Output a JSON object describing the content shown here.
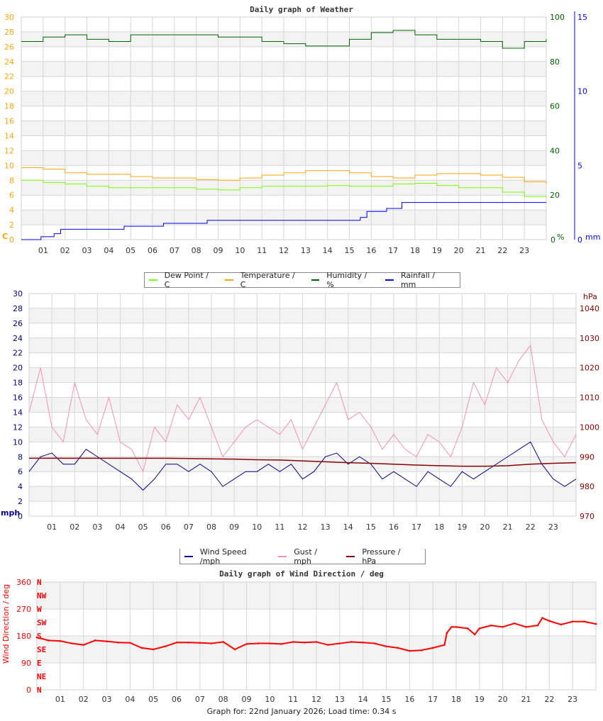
{
  "chart_data": [
    {
      "type": "line",
      "title": "Daily graph of Weather",
      "x_tick_labels": [
        "01",
        "02",
        "03",
        "04",
        "05",
        "06",
        "07",
        "08",
        "09",
        "10",
        "11",
        "12",
        "13",
        "14",
        "15",
        "16",
        "17",
        "18",
        "19",
        "20",
        "21",
        "22",
        "23"
      ],
      "xlim": [
        0,
        24
      ],
      "grid": true,
      "legend_placement": "bottom",
      "axes": {
        "left": {
          "unit": "C",
          "range": [
            0,
            30
          ],
          "ticks": [
            0,
            2,
            4,
            6,
            8,
            10,
            12,
            14,
            16,
            18,
            20,
            22,
            24,
            26,
            28,
            30
          ],
          "color": "#ffa500"
        },
        "humidity": {
          "unit": "%",
          "range": [
            0,
            100
          ],
          "ticks": [
            0,
            20,
            40,
            60,
            80,
            100
          ],
          "color": "#006400"
        },
        "rain": {
          "unit": "mm",
          "range": [
            0,
            15
          ],
          "ticks": [
            0,
            5,
            10,
            15
          ],
          "color": "#0000ff"
        }
      },
      "series": [
        {
          "name": "Dew Point / C",
          "axis": "left",
          "color": "#7cfc00",
          "x": [
            0,
            1,
            2,
            3,
            4,
            5,
            6,
            7,
            8,
            9,
            10,
            11,
            12,
            13,
            14,
            15,
            16,
            17,
            18,
            19,
            20,
            21,
            22,
            23,
            24
          ],
          "y": [
            8.0,
            7.7,
            7.5,
            7.2,
            7.0,
            7.0,
            7.0,
            7.0,
            6.8,
            6.7,
            7.0,
            7.2,
            7.2,
            7.2,
            7.3,
            7.2,
            7.2,
            7.5,
            7.6,
            7.3,
            7.0,
            7.0,
            6.4,
            5.8,
            5.7
          ]
        },
        {
          "name": "Temperature / C",
          "axis": "left",
          "color": "#ffa500",
          "x": [
            0,
            1,
            2,
            3,
            4,
            5,
            6,
            7,
            8,
            9,
            10,
            11,
            12,
            13,
            14,
            15,
            16,
            17,
            18,
            19,
            20,
            21,
            22,
            23,
            24
          ],
          "y": [
            9.7,
            9.5,
            9.0,
            8.8,
            8.8,
            8.5,
            8.3,
            8.3,
            8.1,
            8.0,
            8.3,
            8.7,
            9.0,
            9.3,
            9.3,
            9.0,
            8.5,
            8.3,
            8.7,
            8.9,
            8.9,
            8.7,
            8.4,
            7.8,
            7.5
          ]
        },
        {
          "name": "Humidity / %",
          "axis": "humidity",
          "color": "#006400",
          "x": [
            0,
            1,
            2,
            3,
            4,
            5,
            6,
            7,
            8,
            9,
            10,
            11,
            12,
            13,
            14,
            15,
            16,
            17,
            18,
            19,
            20,
            21,
            22,
            23,
            24
          ],
          "y": [
            89,
            91,
            92,
            90,
            89,
            92,
            92,
            92,
            92,
            91,
            91,
            89,
            88,
            87,
            87,
            90,
            93,
            94,
            92,
            90,
            90,
            89,
            86,
            89,
            90
          ]
        },
        {
          "name": "Rainfall / mm",
          "axis": "rain",
          "color": "#0000ff",
          "x": [
            0,
            0.9,
            1.5,
            1.8,
            4.7,
            6.5,
            8.5,
            15.5,
            15.8,
            16.7,
            17.4,
            24
          ],
          "y": [
            0.0,
            0.2,
            0.4,
            0.7,
            0.9,
            1.1,
            1.3,
            1.5,
            1.9,
            2.1,
            2.5,
            2.5
          ]
        }
      ]
    },
    {
      "type": "line",
      "title": "",
      "x_tick_labels": [
        "01",
        "02",
        "03",
        "04",
        "05",
        "06",
        "07",
        "08",
        "09",
        "10",
        "11",
        "12",
        "13",
        "14",
        "15",
        "16",
        "17",
        "18",
        "19",
        "20",
        "21",
        "22",
        "23"
      ],
      "xlim": [
        0,
        24
      ],
      "grid": true,
      "legend_placement": "bottom",
      "axes": {
        "left": {
          "unit": "mph",
          "range": [
            0,
            30
          ],
          "ticks": [
            0,
            2,
            4,
            6,
            8,
            10,
            12,
            14,
            16,
            18,
            20,
            22,
            24,
            26,
            28,
            30
          ],
          "color": "#00008b"
        },
        "pressure": {
          "unit": "hPa",
          "range": [
            970,
            1045
          ],
          "ticks": [
            970,
            980,
            990,
            1000,
            1010,
            1020,
            1030,
            1040
          ],
          "color": "#8b0000"
        }
      },
      "series": [
        {
          "name": "Wind Speed /mph",
          "axis": "left",
          "color": "#00008b",
          "y_every_half_hour": [
            6,
            8,
            8.5,
            7,
            7,
            9,
            8,
            7,
            6,
            5,
            3.5,
            5,
            7,
            7,
            6,
            7,
            6,
            4,
            5,
            6,
            6,
            7,
            6,
            7,
            5,
            6,
            8,
            8.5,
            7,
            8,
            7,
            5,
            6,
            5,
            4,
            6,
            5,
            4,
            6,
            5,
            6,
            7,
            8,
            9,
            10,
            7,
            5,
            4,
            5
          ]
        },
        {
          "name": "Gust / mph",
          "axis": "left",
          "color": "#f78fb0",
          "y_every_half_hour": [
            14,
            20,
            12,
            10,
            18,
            13,
            11,
            16,
            10,
            9,
            6,
            12,
            10,
            15,
            13,
            16,
            12,
            8,
            10,
            12,
            13,
            12,
            11,
            13,
            9,
            12,
            15,
            18,
            13,
            14,
            12,
            9,
            11,
            9,
            8,
            11,
            10,
            8,
            12,
            18,
            15,
            20,
            18,
            21,
            23,
            13,
            10,
            8,
            11
          ]
        },
        {
          "name": "Pressure / hPa",
          "axis": "pressure",
          "color": "#8b0000",
          "y_hourly": [
            989.5,
            989.5,
            989.5,
            989.5,
            989.5,
            989.5,
            989.5,
            989.4,
            989.3,
            989.2,
            989.0,
            988.9,
            988.6,
            988.3,
            988.0,
            987.8,
            987.5,
            987.2,
            987.0,
            986.8,
            986.8,
            987.0,
            987.5,
            987.8,
            988.0
          ]
        }
      ]
    },
    {
      "type": "scatter",
      "title": "Daily graph of Wind Direction / deg",
      "ylabel": "Wind Direction / deg",
      "x_tick_labels": [
        "01",
        "02",
        "03",
        "04",
        "05",
        "06",
        "07",
        "08",
        "09",
        "10",
        "11",
        "12",
        "13",
        "14",
        "15",
        "16",
        "17",
        "18",
        "19",
        "20",
        "21",
        "22",
        "23"
      ],
      "xlim": [
        0,
        24
      ],
      "ylim": [
        0,
        360
      ],
      "yticks": [
        0,
        90,
        180,
        270,
        360
      ],
      "compass_labels": [
        "N",
        "NE",
        "E",
        "SE",
        "S",
        "SW",
        "W",
        "NW",
        "N"
      ],
      "color": "#ff0000",
      "grid": true,
      "series": [
        {
          "name": "",
          "color": "#ff0000",
          "x": [
            0,
            0.5,
            1,
            1.5,
            2,
            2.5,
            3,
            3.5,
            4,
            4.5,
            5,
            5.5,
            6,
            6.5,
            7,
            7.5,
            8,
            8.5,
            9,
            9.5,
            10,
            10.5,
            11,
            11.5,
            12,
            12.5,
            13,
            13.5,
            14,
            14.5,
            15,
            15.5,
            16,
            16.5,
            17,
            17.5,
            17.6,
            17.8,
            18,
            18.5,
            18.8,
            19,
            19.5,
            20,
            20.5,
            21,
            21.5,
            21.7,
            22,
            22.5,
            23,
            23.5,
            24
          ],
          "y": [
            175,
            165,
            163,
            155,
            150,
            165,
            162,
            158,
            157,
            140,
            135,
            145,
            158,
            158,
            157,
            155,
            160,
            135,
            153,
            155,
            155,
            153,
            160,
            158,
            160,
            150,
            155,
            160,
            158,
            155,
            145,
            140,
            130,
            132,
            140,
            150,
            190,
            210,
            210,
            205,
            185,
            205,
            215,
            210,
            222,
            210,
            215,
            240,
            230,
            218,
            228,
            228,
            220
          ]
        }
      ]
    }
  ],
  "footer": "Graph for: 22nd January 2026; Load time: 0.34 s"
}
